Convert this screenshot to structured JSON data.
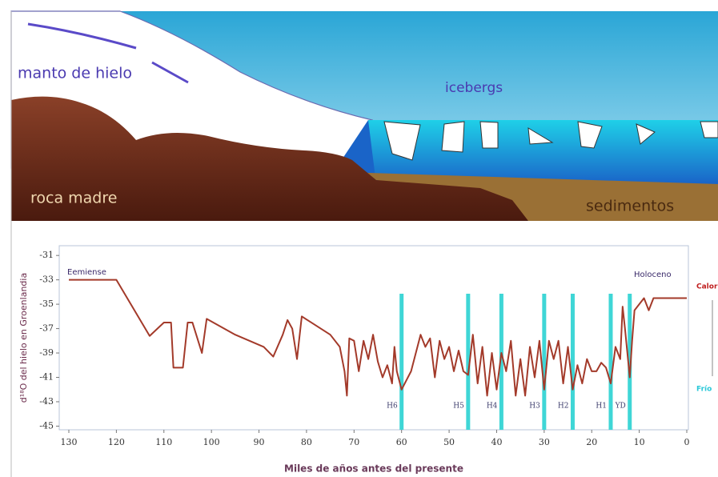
{
  "illustration": {
    "labels": [
      "manto de hielo",
      "icebergs",
      "roca madre",
      "sedimentos"
    ]
  },
  "chart_data": {
    "type": "line",
    "y_label": "d¹⁸O del hielo en Groenlandia",
    "x_label": "Miles de años antes del presente",
    "annotations": [
      "Eemiense",
      "Holoceno",
      "Calor",
      "Frío"
    ],
    "xlim": [
      130,
      0
    ],
    "xticks": [
      130,
      120,
      110,
      100,
      90,
      80,
      70,
      60,
      50,
      40,
      30,
      20,
      10,
      0
    ],
    "ylim": [
      -45.3,
      -30.2
    ],
    "yticks": [
      -31,
      -33,
      -35,
      -37,
      -39,
      -41,
      -43,
      -45
    ],
    "events": [
      {
        "label": "H6",
        "x": 60
      },
      {
        "label": "H5",
        "x": 46
      },
      {
        "label": "H4",
        "x": 39
      },
      {
        "label": "H3",
        "x": 30
      },
      {
        "label": "H2",
        "x": 24
      },
      {
        "label": "H1",
        "x": 16
      },
      {
        "label": "YD",
        "x": 12
      }
    ],
    "event_color": "#3fd6d6",
    "series": [
      {
        "color": "#a33a2a",
        "x": [
          130,
          120,
          113,
          110,
          108.5,
          108,
          106,
          105,
          104,
          102,
          101,
          95,
          89,
          87,
          85,
          84,
          83,
          82,
          81,
          79,
          77,
          75,
          73,
          72,
          71.5,
          71,
          70,
          69,
          68,
          67,
          66,
          65,
          64,
          63,
          62,
          61.5,
          61,
          60,
          58,
          56,
          55,
          54,
          53,
          52,
          51,
          50,
          49,
          48,
          47,
          46,
          45,
          44,
          43,
          42,
          41,
          40,
          39,
          38,
          37,
          36,
          35,
          34,
          33,
          32,
          31,
          30,
          29,
          28,
          27,
          26,
          25,
          24,
          23,
          22,
          21,
          20,
          19,
          18,
          17,
          16,
          15,
          14,
          13.5,
          13,
          12,
          11.5,
          11,
          10,
          9,
          8,
          7,
          4,
          0
        ],
        "values": [
          -33,
          -33,
          -37.6,
          -36.5,
          -36.5,
          -40.2,
          -40.2,
          -36.5,
          -36.5,
          -39,
          -36.2,
          -37.5,
          -38.5,
          -39.3,
          -37.5,
          -36.3,
          -37,
          -39.5,
          -36,
          -36.5,
          -37,
          -37.5,
          -38.5,
          -40.5,
          -42.5,
          -37.8,
          -38,
          -40.5,
          -38,
          -39.5,
          -37.5,
          -39.7,
          -41,
          -40,
          -41.5,
          -38.5,
          -40.5,
          -42,
          -40.5,
          -37.5,
          -38.5,
          -37.8,
          -41,
          -38,
          -39.5,
          -38.5,
          -40.5,
          -38.8,
          -40.5,
          -40.8,
          -37.5,
          -41.5,
          -38.5,
          -42.5,
          -39,
          -42,
          -39,
          -40.5,
          -38,
          -42.5,
          -39.5,
          -42.5,
          -38.5,
          -41,
          -38,
          -42,
          -38,
          -39.5,
          -38,
          -41.5,
          -38.5,
          -42,
          -40,
          -41.5,
          -39.5,
          -40.5,
          -40.5,
          -39.8,
          -40.2,
          -41.5,
          -38.5,
          -39.5,
          -35.2,
          -37,
          -41,
          -38,
          -35.5,
          -35,
          -34.5,
          -35.5,
          -34.5,
          -34.5,
          -34.5
        ]
      }
    ]
  }
}
